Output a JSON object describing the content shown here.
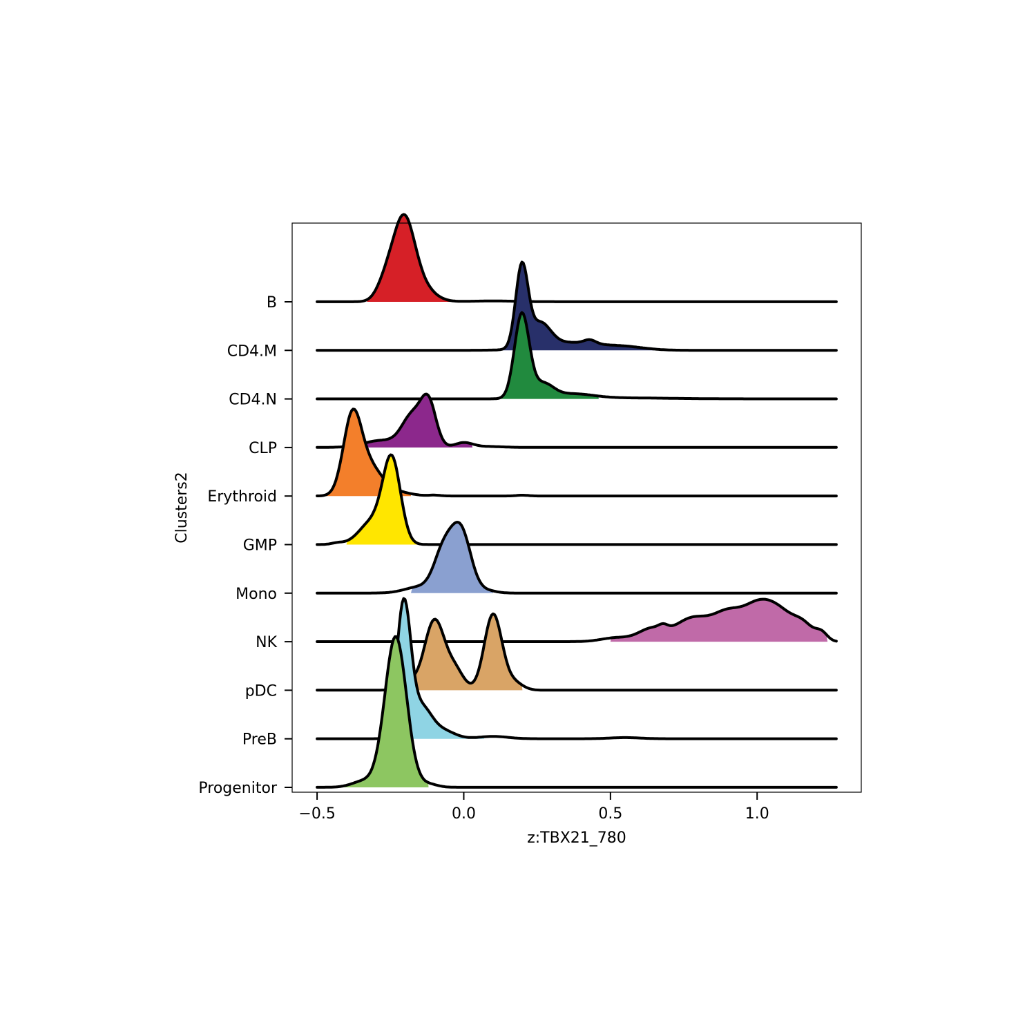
{
  "chart_data": {
    "type": "ridgeline",
    "xlabel": "z:TBX21_780",
    "ylabel": "Clusters2",
    "xlim": [
      -0.585,
      1.355
    ],
    "x_ticks": [
      -0.5,
      0.0,
      0.5,
      1.0
    ],
    "x_tick_labels": [
      "−0.5",
      "0.0",
      "0.5",
      "1.0"
    ],
    "grid": false,
    "x_range": [
      -0.5,
      1.27
    ],
    "categories": [
      "B",
      "CD4.M",
      "CD4.N",
      "CLP",
      "Erythroid",
      "GMP",
      "Mono",
      "NK",
      "pDC",
      "PreB",
      "Progenitor"
    ],
    "series": [
      {
        "category": "B",
        "color": "#d62027",
        "fill_range": [
          -0.33,
          0.35
        ],
        "baseline": 0.001,
        "peaks": [
          [
            -0.205,
            0.036,
            1.0
          ],
          [
            -0.265,
            0.03,
            0.25
          ],
          [
            -0.15,
            0.045,
            0.2
          ],
          [
            0.1,
            0.08,
            0.01
          ]
        ]
      },
      {
        "category": "CD4.M",
        "color": "#28306a",
        "fill_range": [
          0.09,
          0.65
        ],
        "baseline": 0.001,
        "peaks": [
          [
            0.198,
            0.021,
            1.05
          ],
          [
            0.26,
            0.035,
            0.3
          ],
          [
            0.36,
            0.1,
            0.1
          ],
          [
            0.43,
            0.02,
            0.05
          ],
          [
            0.55,
            0.07,
            0.04
          ]
        ]
      },
      {
        "category": "CD4.N",
        "color": "#218a3e",
        "fill_range": [
          0.09,
          0.46
        ],
        "baseline": 0.001,
        "peaks": [
          [
            0.198,
            0.025,
            1.09
          ],
          [
            0.27,
            0.035,
            0.18
          ],
          [
            0.37,
            0.07,
            0.06
          ],
          [
            0.55,
            0.15,
            0.012
          ]
        ]
      },
      {
        "category": "CLP",
        "color": "#8c288c",
        "fill_range": [
          -0.36,
          0.03
        ],
        "baseline": 0.001,
        "peaks": [
          [
            -0.12,
            0.026,
            0.55
          ],
          [
            -0.175,
            0.035,
            0.4
          ],
          [
            -0.28,
            0.06,
            0.09
          ],
          [
            0.0,
            0.03,
            0.06
          ],
          [
            0.08,
            0.05,
            0.012
          ]
        ]
      },
      {
        "category": "Erythroid",
        "color": "#f37f2b",
        "fill_range": [
          -0.47,
          -0.18
        ],
        "baseline": 0.001,
        "peaks": [
          [
            -0.38,
            0.031,
            1.0
          ],
          [
            -0.32,
            0.04,
            0.35
          ],
          [
            -0.24,
            0.05,
            0.06
          ],
          [
            -0.1,
            0.02,
            0.01
          ],
          [
            0.2,
            0.02,
            0.01
          ]
        ]
      },
      {
        "category": "GMP",
        "color": "#ffe600",
        "fill_range": [
          -0.4,
          -0.13
        ],
        "baseline": 0.001,
        "peaks": [
          [
            -0.245,
            0.03,
            1.05
          ],
          [
            -0.31,
            0.045,
            0.3
          ],
          [
            -0.43,
            0.02,
            0.02
          ]
        ]
      },
      {
        "category": "Mono",
        "color": "#8aa0d0",
        "fill_range": [
          -0.18,
          0.1
        ],
        "baseline": 0.001,
        "peaks": [
          [
            -0.01,
            0.034,
            0.8
          ],
          [
            -0.07,
            0.032,
            0.5
          ],
          [
            -0.15,
            0.05,
            0.08
          ],
          [
            0.08,
            0.03,
            0.03
          ]
        ]
      },
      {
        "category": "NK",
        "color": "#c06aa8",
        "fill_range": [
          0.5,
          1.24
        ],
        "baseline": 0.001,
        "peaks": [
          [
            0.52,
            0.05,
            0.05
          ],
          [
            0.64,
            0.045,
            0.16
          ],
          [
            0.68,
            0.015,
            0.05
          ],
          [
            0.78,
            0.06,
            0.3
          ],
          [
            0.9,
            0.05,
            0.33
          ],
          [
            1.0,
            0.05,
            0.4
          ],
          [
            1.08,
            0.05,
            0.33
          ],
          [
            1.16,
            0.035,
            0.18
          ],
          [
            1.22,
            0.02,
            0.1
          ]
        ]
      },
      {
        "category": "pDC",
        "color": "#d9a466",
        "fill_range": [
          -0.22,
          0.2
        ],
        "baseline": 0.001,
        "peaks": [
          [
            -0.1,
            0.034,
            0.9
          ],
          [
            0.1,
            0.03,
            0.98
          ],
          [
            -0.03,
            0.03,
            0.25
          ],
          [
            -0.19,
            0.03,
            0.1
          ],
          [
            0.17,
            0.03,
            0.1
          ]
        ]
      },
      {
        "category": "PreB",
        "color": "#8fd4e4",
        "fill_range": [
          -0.33,
          0.07
        ],
        "baseline": 0.001,
        "peaks": [
          [
            -0.205,
            0.024,
            1.72
          ],
          [
            -0.145,
            0.035,
            0.4
          ],
          [
            -0.07,
            0.04,
            0.1
          ],
          [
            0.1,
            0.05,
            0.03
          ],
          [
            0.55,
            0.05,
            0.015
          ]
        ]
      },
      {
        "category": "Progenitor",
        "color": "#8dc661",
        "fill_range": [
          -0.42,
          -0.12
        ],
        "baseline": 0.001,
        "peaks": [
          [
            -0.232,
            0.037,
            1.95
          ],
          [
            -0.34,
            0.04,
            0.08
          ],
          [
            -0.12,
            0.03,
            0.04
          ]
        ]
      }
    ]
  }
}
